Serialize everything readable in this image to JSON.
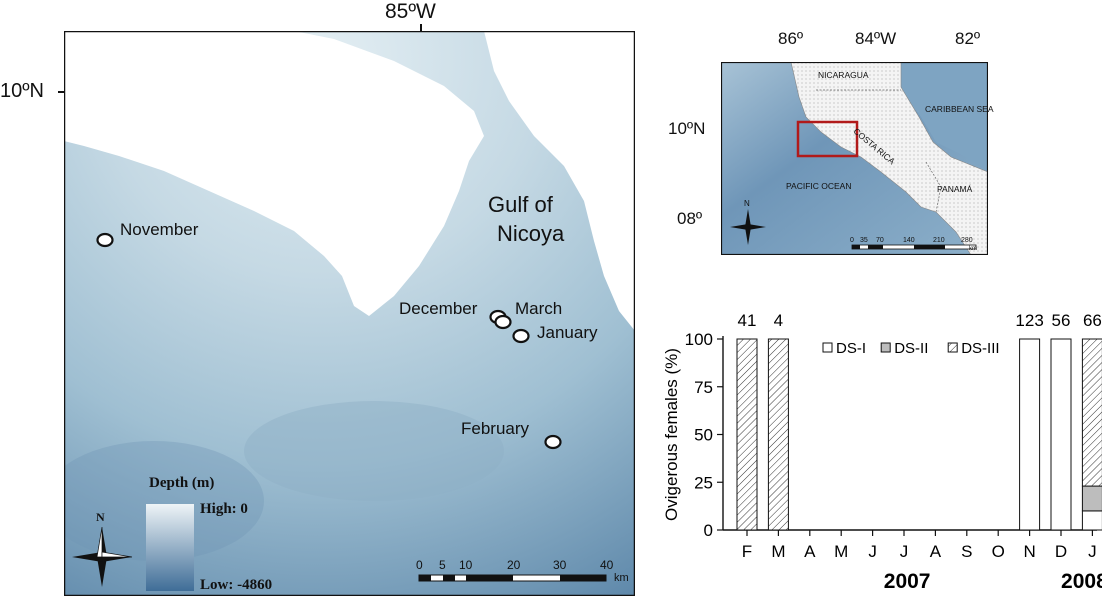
{
  "main_map": {
    "lon_label": "85ºW",
    "lat_label": "10ºN",
    "gulf_label_line1": "Gulf of",
    "gulf_label_line2": "Nicoya",
    "sites": [
      {
        "label": "November"
      },
      {
        "label": "December"
      },
      {
        "label": "March"
      },
      {
        "label": "January"
      },
      {
        "label": "February"
      }
    ],
    "legend": {
      "title": "Depth (m)",
      "high_label": "High: 0",
      "low_label": "Low: -4860"
    },
    "north_label": "N",
    "scale": {
      "ticks": [
        "0",
        "5",
        "10",
        "20",
        "30",
        "40"
      ],
      "unit": "km"
    }
  },
  "inset_map": {
    "lon_labels": [
      "86º",
      "84ºW",
      "82º"
    ],
    "lat_labels": [
      "10ºN",
      "08º"
    ],
    "places": [
      "NICARAGUA",
      "CARIBBEAN SEA",
      "COSTA RICA",
      "PACIFIC OCEAN",
      "PANAMÁ"
    ],
    "north_label": "N",
    "scale": {
      "ticks": [
        "0",
        "35",
        "70",
        "140",
        "210",
        "280"
      ],
      "unit": "km"
    }
  },
  "chart_data": {
    "type": "bar",
    "stacked": true,
    "categories": [
      "F",
      "M",
      "A",
      "M",
      "J",
      "J",
      "A",
      "S",
      "O",
      "N",
      "D",
      "J"
    ],
    "counts": [
      "41",
      "4",
      "",
      "",
      "",
      "",
      "",
      "",
      "",
      "123",
      "56",
      "66"
    ],
    "series": [
      {
        "name": "DS-I",
        "values": [
          0,
          0,
          0,
          0,
          0,
          0,
          0,
          0,
          0,
          100,
          100,
          10
        ],
        "pattern": "white"
      },
      {
        "name": "DS-II",
        "values": [
          0,
          0,
          0,
          0,
          0,
          0,
          0,
          0,
          0,
          0,
          0,
          13
        ],
        "pattern": "gray"
      },
      {
        "name": "DS-III",
        "values": [
          100,
          100,
          0,
          0,
          0,
          0,
          0,
          0,
          0,
          0,
          0,
          77
        ],
        "pattern": "hatched"
      }
    ],
    "ylabel": "Ovigerous females (%)",
    "yticks": [
      "0",
      "25",
      "50",
      "75",
      "100"
    ],
    "ylim": [
      0,
      100
    ],
    "year_labels": [
      "2007",
      "2008"
    ],
    "legend_position": "top-right"
  }
}
